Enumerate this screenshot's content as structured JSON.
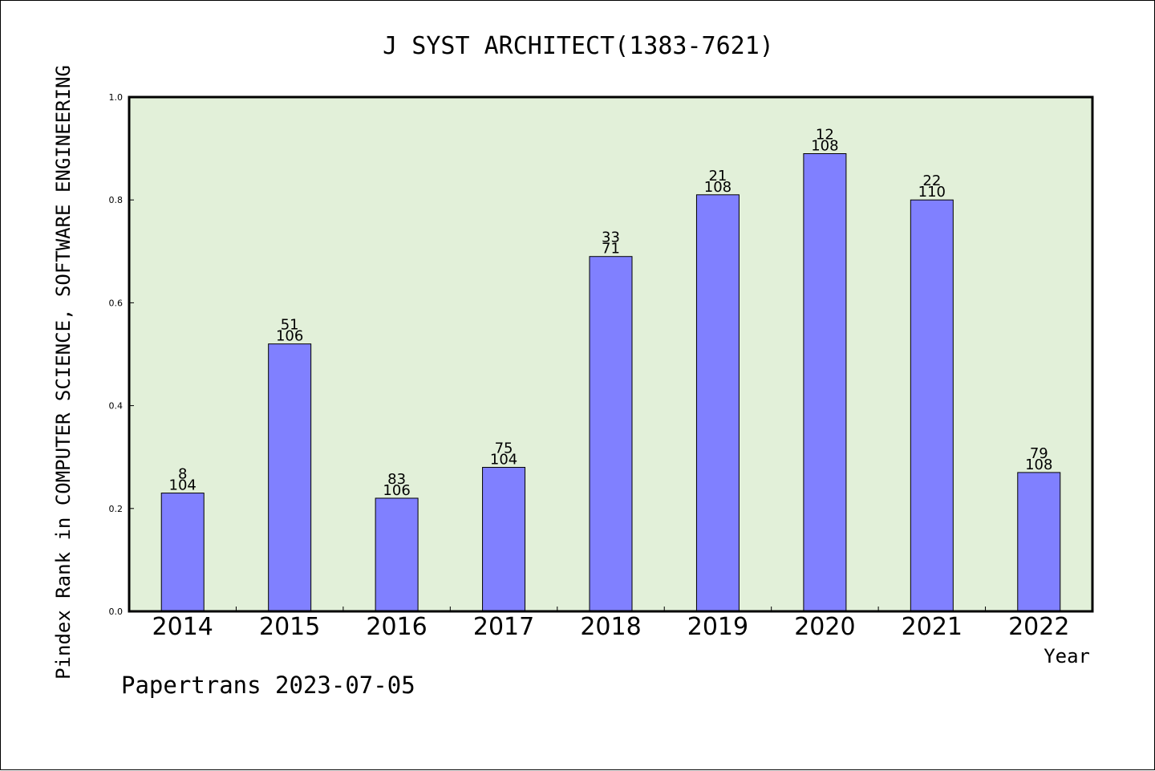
{
  "chart_data": {
    "type": "bar",
    "title": "J SYST ARCHITECT(1383-7621)",
    "xlabel": "Year",
    "ylabel": "Pindex Rank in COMPUTER SCIENCE, SOFTWARE ENGINEERING",
    "ylim": [
      0,
      1.0
    ],
    "yticks": [
      "0.0",
      "0.2",
      "0.4",
      "0.6",
      "0.8",
      "1.0"
    ],
    "grid": false,
    "categories": [
      "2014",
      "2015",
      "2016",
      "2017",
      "2018",
      "2019",
      "2020",
      "2021",
      "2022"
    ],
    "values": [
      0.23,
      0.52,
      0.22,
      0.28,
      0.69,
      0.81,
      0.89,
      0.8,
      0.27
    ],
    "rank_labels": [
      "8",
      "51",
      "83",
      "75",
      "33",
      "21",
      "12",
      "22",
      "79"
    ],
    "total_labels": [
      "104",
      "106",
      "106",
      "104",
      "71",
      "108",
      "108",
      "110",
      "108"
    ],
    "colors": {
      "bar_fill": "#8080ff",
      "bar_stroke": "#000000",
      "plot_background": "#e2f0d9",
      "axis": "#000000"
    }
  },
  "footer": {
    "source_text": "Papertrans 2023-07-05"
  }
}
